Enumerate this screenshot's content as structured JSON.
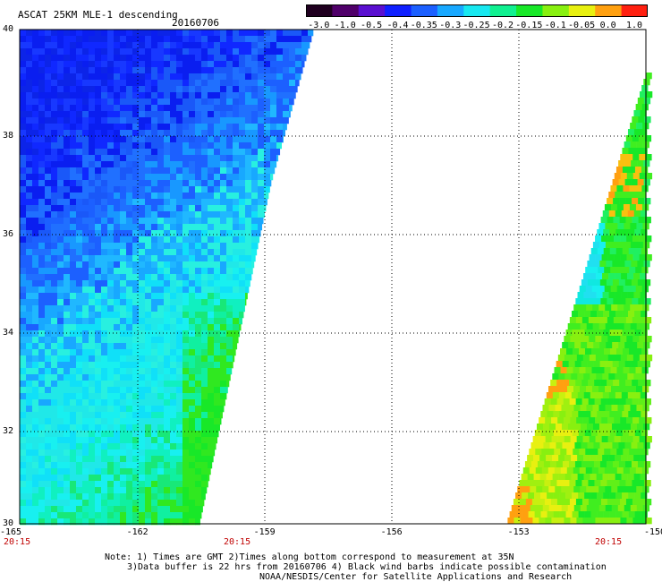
{
  "header": {
    "title": "ASCAT 25KM MLE-1 descending",
    "date": "20160706"
  },
  "colorbar": {
    "tick_labels": [
      "-3.0",
      "-1.0",
      "-0.5",
      "-0.4",
      "-0.35",
      "-0.3",
      "-0.25",
      "-0.2",
      "-0.15",
      "-0.1",
      "-0.05",
      "0.0",
      "1.0"
    ],
    "colors": [
      "#200020",
      "#50006a",
      "#5a10d0",
      "#1020ff",
      "#1c60ff",
      "#18a8ff",
      "#18e8f0",
      "#10f090",
      "#18e828",
      "#88f010",
      "#e8f010",
      "#ffa010",
      "#ff2010"
    ]
  },
  "map": {
    "lat_labels": [
      "40",
      "38",
      "36",
      "34",
      "32",
      "30"
    ],
    "lon_labels": [
      "-165",
      "-162",
      "-159",
      "-156",
      "-153",
      "-150"
    ],
    "time_labels": [
      "20:15",
      "20:15",
      "20:15"
    ]
  },
  "notes": {
    "line1": "Note: 1) Times are GMT 2)Times along bottom correspond to measurement at 35N",
    "line2": "3)Data buffer is 22 hrs from 20160706 4) Black wind barbs indicate possible contamination",
    "line3": "NOAA/NESDIS/Center for Satellite Applications and Research"
  }
}
